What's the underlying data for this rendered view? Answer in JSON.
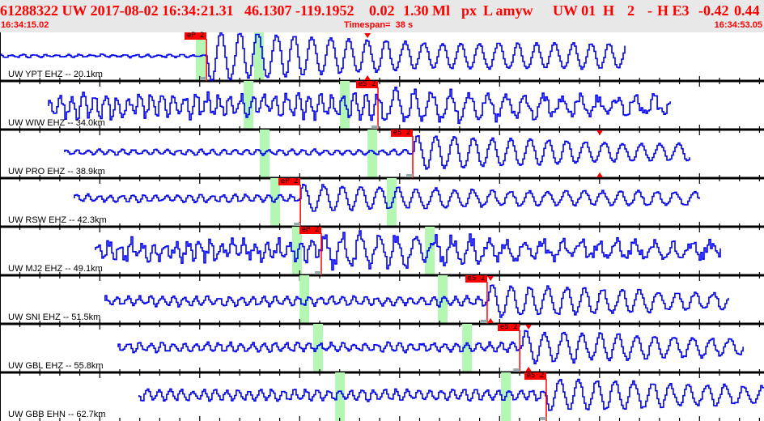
{
  "header": {
    "event_id_time": "61288322 UW 2017-08-02 16:34:21.31",
    "location": "46.1307 -119.1952",
    "depth": "0.02",
    "magnitude": "1.30 Ml",
    "mag_algo": "px",
    "type_author": "L amyw",
    "net_loc": "UW 01",
    "h1": "H",
    "num": "2",
    "dash": "-",
    "h2": "H E3",
    "v1": "-0.42",
    "v2": "0.44",
    "start_time": "16:34:15.02",
    "timespan": "Timespan=  38 s",
    "end_time": "16:34:53.05"
  },
  "timespan_s": 38,
  "colors": {
    "trace": "#0000ff",
    "pick": "#ff0000",
    "window": "#b3f7b3",
    "text": "#ff0000"
  },
  "stations": [
    {
      "label": "UW YPT EHZ -- 20.1km",
      "pick": {
        "label": "eP 2",
        "t": 10.27
      },
      "windows": [
        9.74,
        12.64
      ],
      "trace": [
        0,
        31.08
      ],
      "marker": 18.28
    },
    {
      "label": "UW WIW EHZ -- 34.0km",
      "pick": {
        "label": "eS 2",
        "t": 18.8
      },
      "windows": [
        12.12,
        16.91
      ],
      "trace": [
        2.42,
        33.41
      ],
      "marker": null
    },
    {
      "label": "UW PRO EHZ -- 38.9km",
      "pick": {
        "label": "eS 2",
        "t": 20.53
      },
      "windows": [
        12.92,
        18.28
      ],
      "trace": [
        3.22,
        34.3
      ],
      "marker": 29.83
    },
    {
      "label": "UW RSW EHZ -- 42.3km",
      "pick": {
        "label": "eP 2",
        "t": 14.94
      },
      "windows": [
        13.45,
        19.24
      ],
      "trace": [
        3.7,
        34.82
      ],
      "marker": null
    },
    {
      "label": "UW MJ2 EHZ -- 49.1km",
      "pick": {
        "label": "eP 2",
        "t": 15.98
      },
      "windows": [
        14.53,
        21.14
      ],
      "trace": [
        4.75,
        35.83
      ],
      "marker": null
    },
    {
      "label": "UW SNI EHZ -- 51.5km",
      "pick": {
        "label": "eS 2",
        "t": 24.23
      },
      "windows": [
        14.9,
        21.78
      ],
      "trace": [
        5.23,
        36.23
      ],
      "marker": 24.4
    },
    {
      "label": "UW GBL EHZ -- 55.8km",
      "pick": {
        "label": "eS 2",
        "t": 25.85
      },
      "windows": [
        15.58,
        22.99
      ],
      "trace": [
        5.88,
        36.96
      ],
      "marker": 26.29
    },
    {
      "label": "UW GBB EHN -- 62.7km",
      "pick": {
        "label": "eS 2",
        "t": 27.17
      },
      "windows": [
        16.67,
        24.92
      ],
      "trace": [
        6.92,
        38.0
      ],
      "marker": null
    }
  ]
}
